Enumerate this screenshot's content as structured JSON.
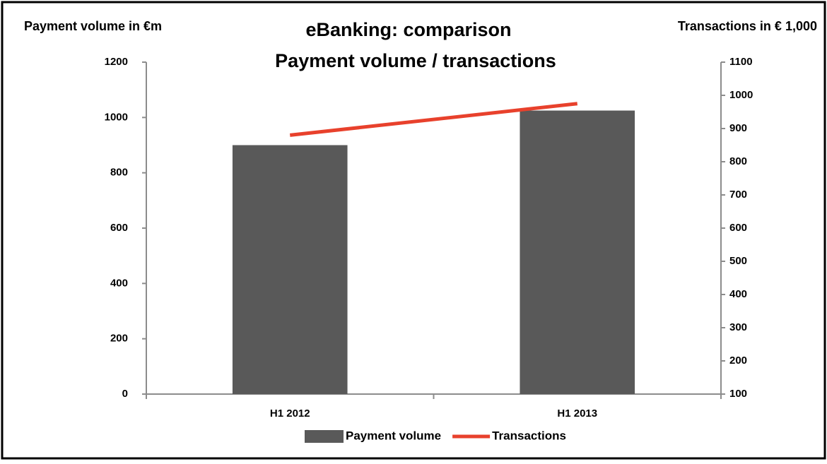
{
  "chart_data": {
    "type": "bar",
    "title": "eBanking: comparison",
    "subtitle": "Payment volume / transactions",
    "y_label": "Payment volume in €m",
    "y2_label": "Transactions in € 1,000",
    "categories": [
      "H1 2012",
      "H1 2013"
    ],
    "series": [
      {
        "name": "Payment volume",
        "type": "bar",
        "color": "#595959",
        "values": [
          900,
          1025
        ]
      },
      {
        "name": "Transactions",
        "type": "line",
        "color": "#e8412c",
        "axis": "y2",
        "values": [
          880,
          975
        ]
      }
    ],
    "ylim": [
      0,
      1200
    ],
    "yticks": [
      0,
      200,
      400,
      600,
      800,
      1000,
      1200
    ],
    "y2lim": [
      100,
      1100
    ],
    "y2ticks": [
      100,
      200,
      300,
      400,
      500,
      600,
      700,
      800,
      900,
      1000,
      1100
    ],
    "grid": false,
    "legend": "bottom"
  }
}
